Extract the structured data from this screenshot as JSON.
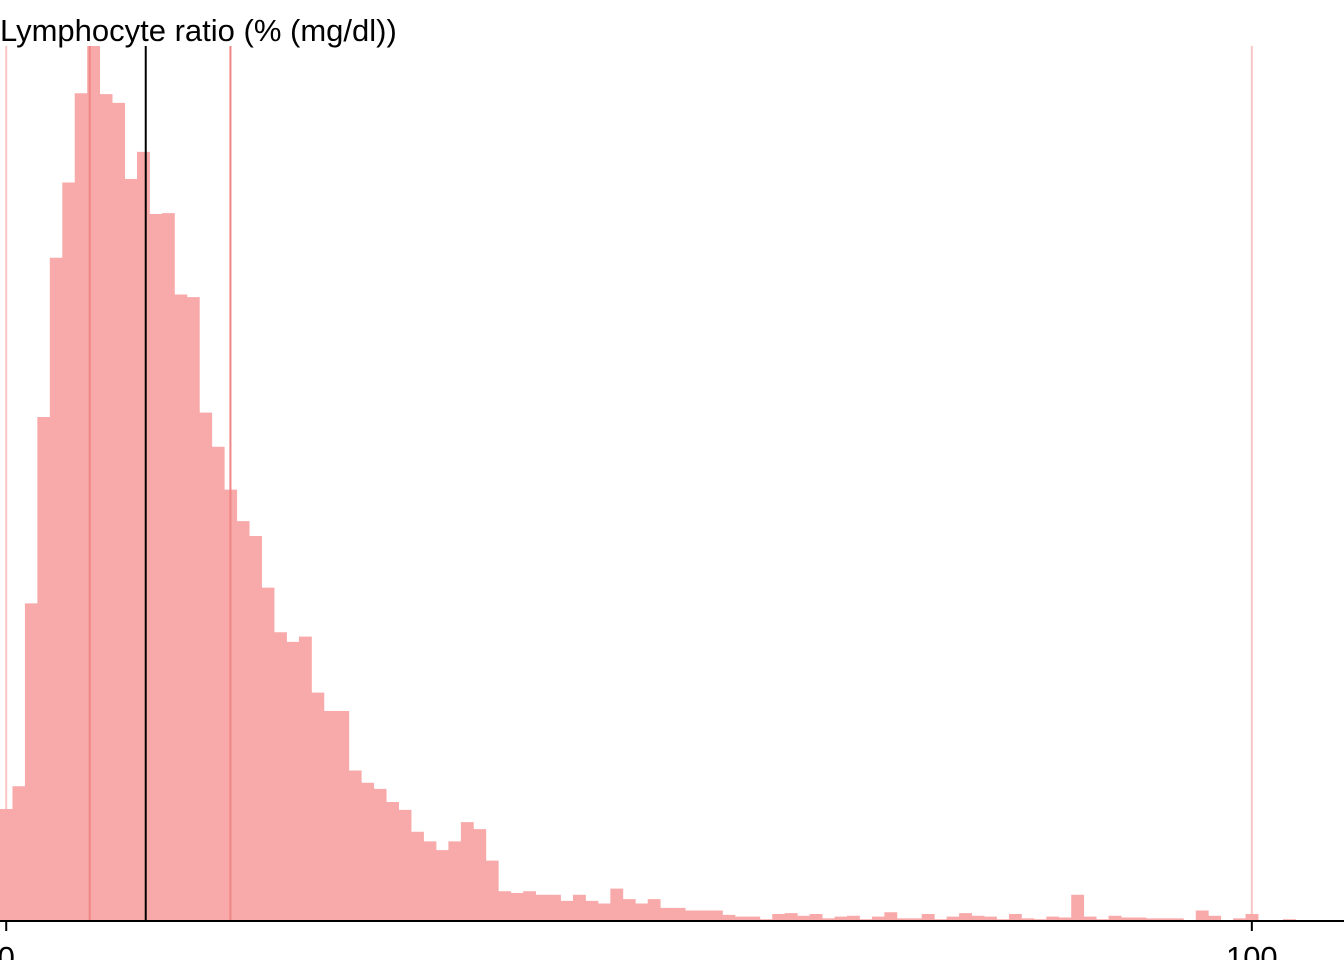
{
  "chart_data": {
    "type": "bar",
    "title": "Lymphocyte ratio (% (mg/dl))",
    "xlabel": "",
    "ylabel": "",
    "xlim": [
      -0.5,
      107.4
    ],
    "ylim": [
      0,
      100
    ],
    "x_ticks": [
      {
        "value": 0,
        "label": "0"
      },
      {
        "value": 100,
        "label": "100"
      }
    ],
    "bin_width": 1,
    "bins_start": -0.5,
    "values": [
      12.8,
      15.4,
      36.3,
      57.6,
      75.8,
      84.4,
      94.6,
      100,
      94.5,
      93.5,
      84.8,
      87.9,
      80.8,
      80.9,
      71.6,
      71.3,
      58.1,
      54.2,
      49.3,
      45.7,
      44.0,
      38.1,
      33.0,
      31.9,
      32.5,
      26.1,
      24.0,
      24.0,
      17.2,
      15.8,
      15.1,
      13.6,
      12.7,
      10.2,
      9.1,
      8.1,
      9.1,
      11.3,
      10.5,
      6.9,
      3.4,
      3.2,
      3.4,
      3.0,
      3.0,
      2.3,
      3.0,
      2.3,
      2.0,
      3.7,
      2.5,
      2.0,
      2.5,
      1.5,
      1.5,
      1.2,
      1.2,
      1.2,
      0.7,
      0.5,
      0.5,
      0.2,
      0.8,
      0.9,
      0.6,
      0.8,
      0.3,
      0.5,
      0.6,
      0.2,
      0.5,
      1.0,
      0.3,
      0.3,
      0.8,
      0.2,
      0.5,
      0.9,
      0.6,
      0.5,
      0.2,
      0.8,
      0.3,
      0.2,
      0.5,
      0.4,
      3.0,
      0.5,
      0.2,
      0.6,
      0.4,
      0.4,
      0.3,
      0.3,
      0.3,
      0.0,
      1.2,
      0.6,
      0.0,
      0.3,
      0.8,
      0.1,
      0.0,
      0.2
    ],
    "vlines": [
      {
        "x": 0,
        "color": "#f8c5c5",
        "layer": "back"
      },
      {
        "x": 100,
        "color": "#f8c5c5",
        "layer": "back"
      },
      {
        "x": 6.7,
        "color": "#f08585",
        "layer": "front"
      },
      {
        "x": 18,
        "color": "#f08585",
        "layer": "front"
      },
      {
        "x": 11.2,
        "color": "#000000",
        "layer": "front"
      }
    ],
    "bar_color": "#f8a9a9",
    "grid": false,
    "legend": "none"
  }
}
